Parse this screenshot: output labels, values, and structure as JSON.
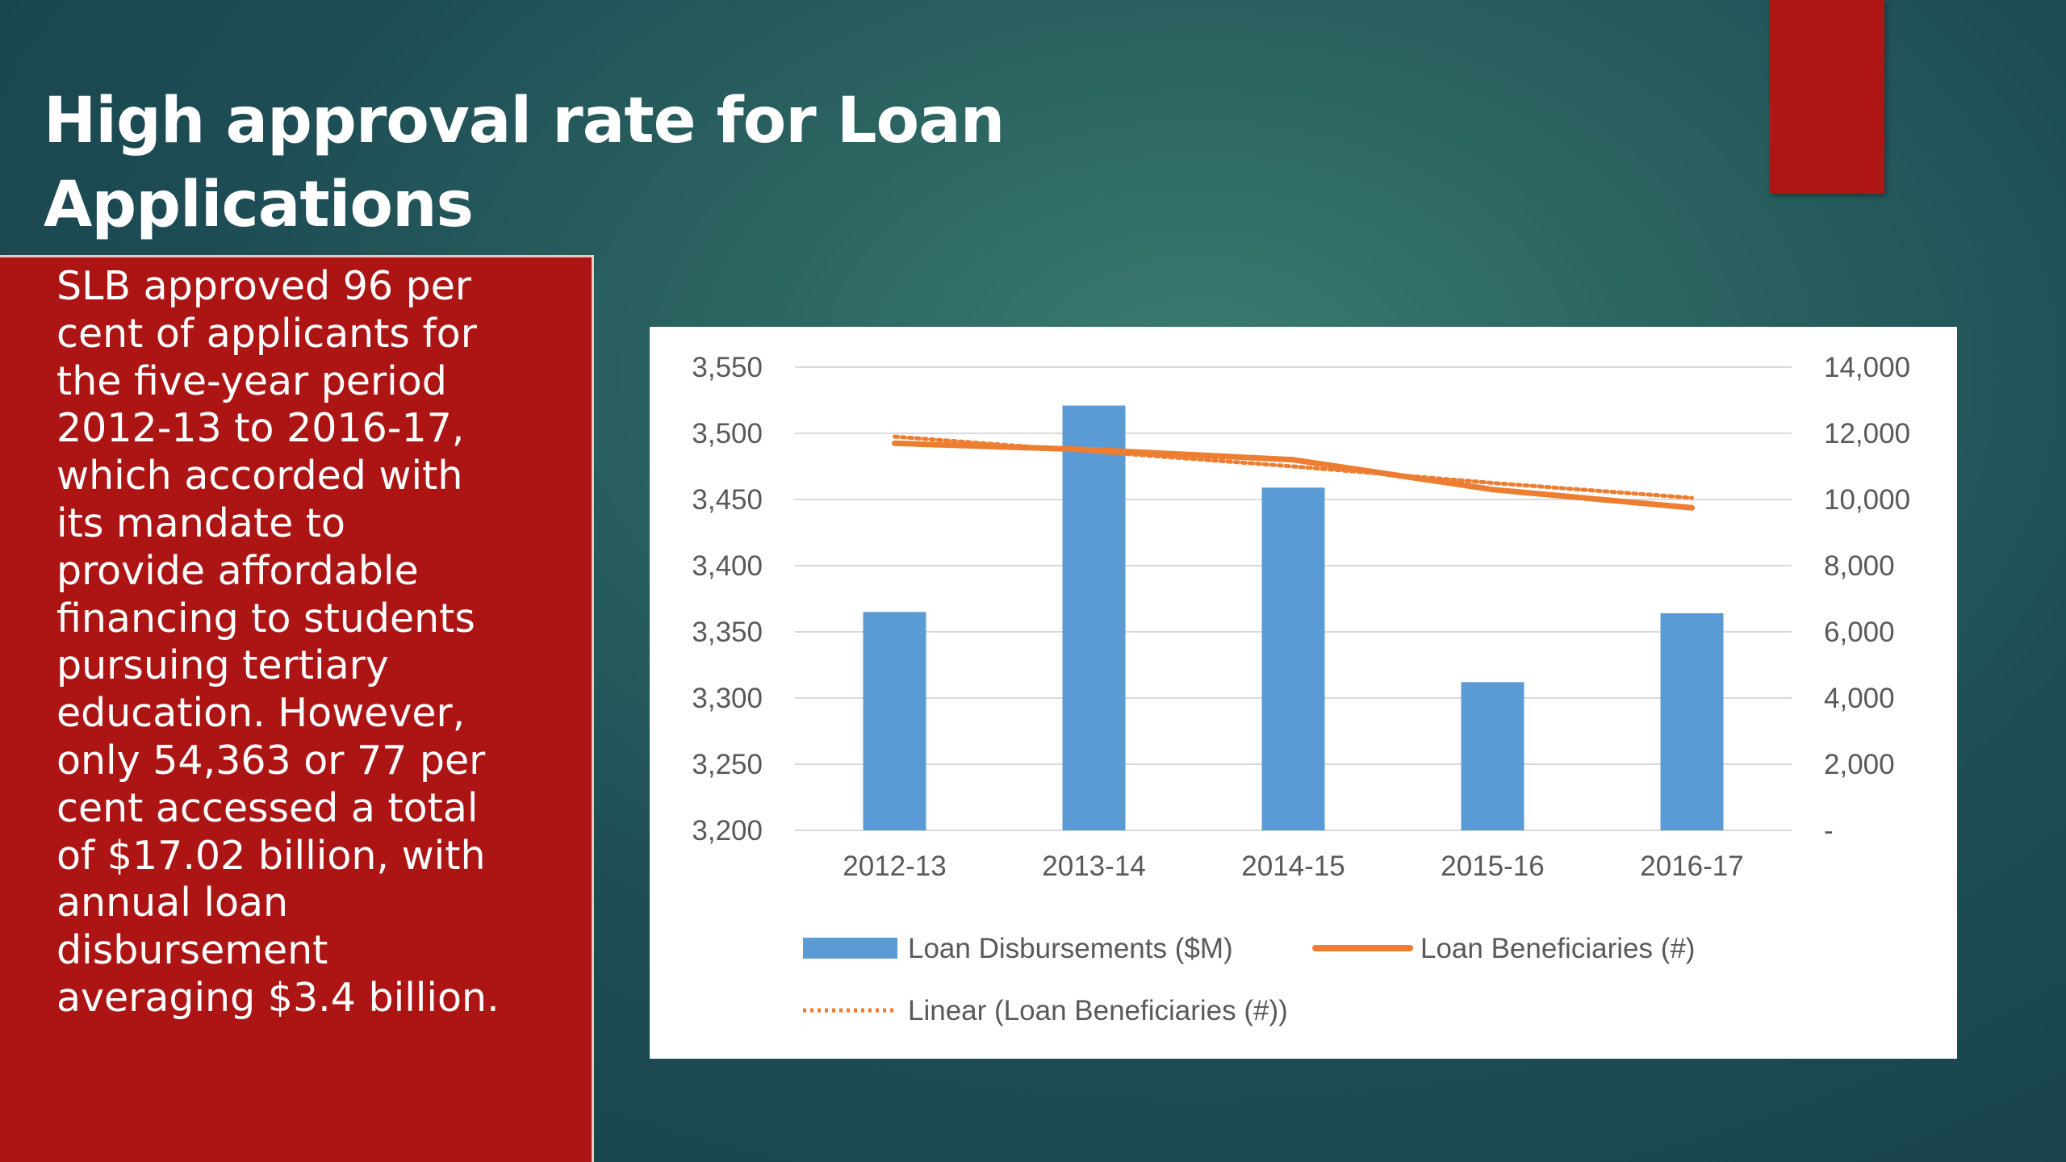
{
  "slide": {
    "title_line1": "High approval rate for Loan",
    "title_line2": "Applications",
    "body_lines": [
      "SLB approved 96 per",
      "cent of applicants for",
      "the five-year period",
      "2012-13 to 2016-17,",
      "which accorded with",
      "its mandate to",
      "provide affordable",
      "financing to students",
      "pursuing tertiary",
      "education. However,",
      "only 54,363 or 77 per",
      "cent accessed a total",
      "of $17.02 billion, with",
      "annual loan",
      "disbursement",
      "averaging $3.4 billion."
    ],
    "colors": {
      "accent": "#b01516",
      "panel": "#ad1414",
      "bar": "#5b9bd5",
      "line": "#ed7d31"
    }
  },
  "chart_data": {
    "type": "bar",
    "categories": [
      "2012-13",
      "2013-14",
      "2014-15",
      "2015-16",
      "2016-17"
    ],
    "series": [
      {
        "name": "Loan Disbursements ($M)",
        "type": "bar",
        "axis": "left",
        "color": "#5b9bd5",
        "values": [
          3365,
          3521,
          3459,
          3312,
          3364
        ]
      },
      {
        "name": "Loan Beneficiaries (#)",
        "type": "line",
        "axis": "right",
        "color": "#ed7d31",
        "values": [
          11700,
          11500,
          11200,
          10300,
          9750
        ]
      },
      {
        "name": "Linear (Loan Beneficiaries (#))",
        "type": "trendline",
        "style": "dotted",
        "axis": "right",
        "color": "#ed7d31",
        "values": [
          11900,
          11450,
          11000,
          10500,
          10050
        ]
      }
    ],
    "y_left": {
      "min": 3200,
      "max": 3550,
      "step": 50,
      "tick_labels": [
        "3,200",
        "3,250",
        "3,300",
        "3,350",
        "3,400",
        "3,450",
        "3,500",
        "3,550"
      ]
    },
    "y_right": {
      "min": 0,
      "max": 14000,
      "step": 2000,
      "tick_labels": [
        "-",
        "2,000",
        "4,000",
        "6,000",
        "8,000",
        "10,000",
        "12,000",
        "14,000"
      ]
    },
    "grid": true,
    "legend": "bottom"
  }
}
